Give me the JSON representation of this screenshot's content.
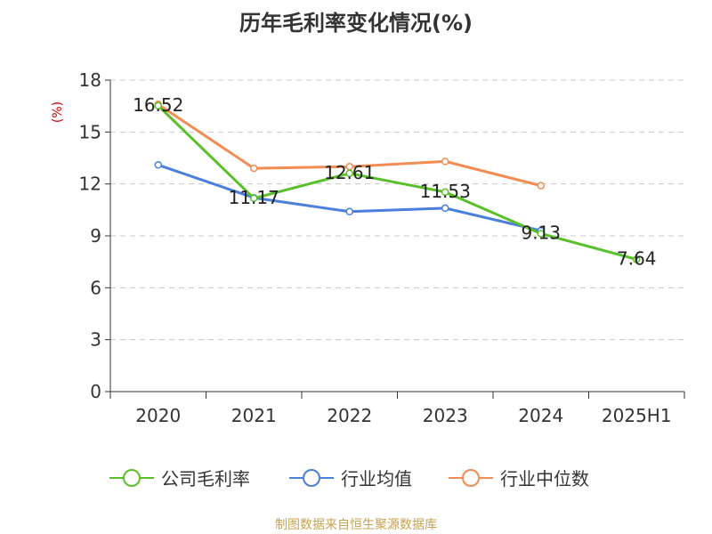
{
  "page": {
    "title": "历年毛利率变化情况(%)",
    "source": "制图数据来自恒生聚源数据库"
  },
  "chart_data": {
    "type": "line",
    "title": "历年毛利率变化情况(%)",
    "ylabel": "(%)",
    "xlabel": "",
    "categories": [
      "2020",
      "2021",
      "2022",
      "2023",
      "2024",
      "2025H1"
    ],
    "ylim": [
      0,
      18
    ],
    "yticks": [
      0,
      3,
      6,
      9,
      12,
      15,
      18
    ],
    "grid": true,
    "legend_position": "bottom",
    "series": [
      {
        "name": "公司毛利率",
        "color": "#5ac02a",
        "values": [
          16.52,
          11.17,
          12.61,
          11.53,
          9.13,
          7.64
        ],
        "labels": [
          "16.52",
          "11.17",
          "12.61",
          "11.53",
          "9.13",
          "7.64"
        ]
      },
      {
        "name": "行业均值",
        "color": "#4a7fdb",
        "values": [
          13.1,
          11.2,
          10.4,
          10.6,
          9.3,
          null
        ]
      },
      {
        "name": "行业中位数",
        "color": "#f28c53",
        "values": [
          16.6,
          12.9,
          13.0,
          13.3,
          11.9,
          null
        ]
      }
    ]
  }
}
